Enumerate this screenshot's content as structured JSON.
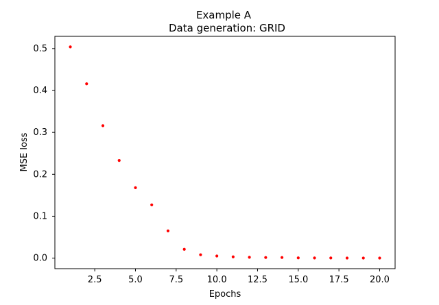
{
  "chart_data": {
    "type": "scatter",
    "title": "Example A",
    "subtitle": "Data generation: GRID",
    "xlabel": "Epochs",
    "ylabel": "MSE loss",
    "xlim": [
      0.05,
      20.95
    ],
    "ylim": [
      -0.0252,
      0.5292
    ],
    "xticks": [
      2.5,
      5.0,
      7.5,
      10.0,
      12.5,
      15.0,
      17.5,
      20.0
    ],
    "xtick_labels": [
      "2.5",
      "5.0",
      "7.5",
      "10.0",
      "12.5",
      "15.0",
      "17.5",
      "20.0"
    ],
    "yticks": [
      0.0,
      0.1,
      0.2,
      0.3,
      0.4,
      0.5
    ],
    "ytick_labels": [
      "0.0",
      "0.1",
      "0.2",
      "0.3",
      "0.4",
      "0.5"
    ],
    "grid": false,
    "marker_color": "#ff0000",
    "series": [
      {
        "x": [
          1,
          2,
          3,
          4,
          5,
          6,
          7,
          8,
          9,
          10,
          11,
          12,
          13,
          14,
          15,
          16,
          17,
          18,
          19,
          20
        ],
        "y": [
          0.504,
          0.416,
          0.316,
          0.233,
          0.168,
          0.127,
          0.065,
          0.021,
          0.008,
          0.005,
          0.003,
          0.002,
          0.0015,
          0.0015,
          0.0005,
          0.0004,
          0.0003,
          0.0002,
          0.0002,
          0.0001
        ]
      }
    ]
  }
}
